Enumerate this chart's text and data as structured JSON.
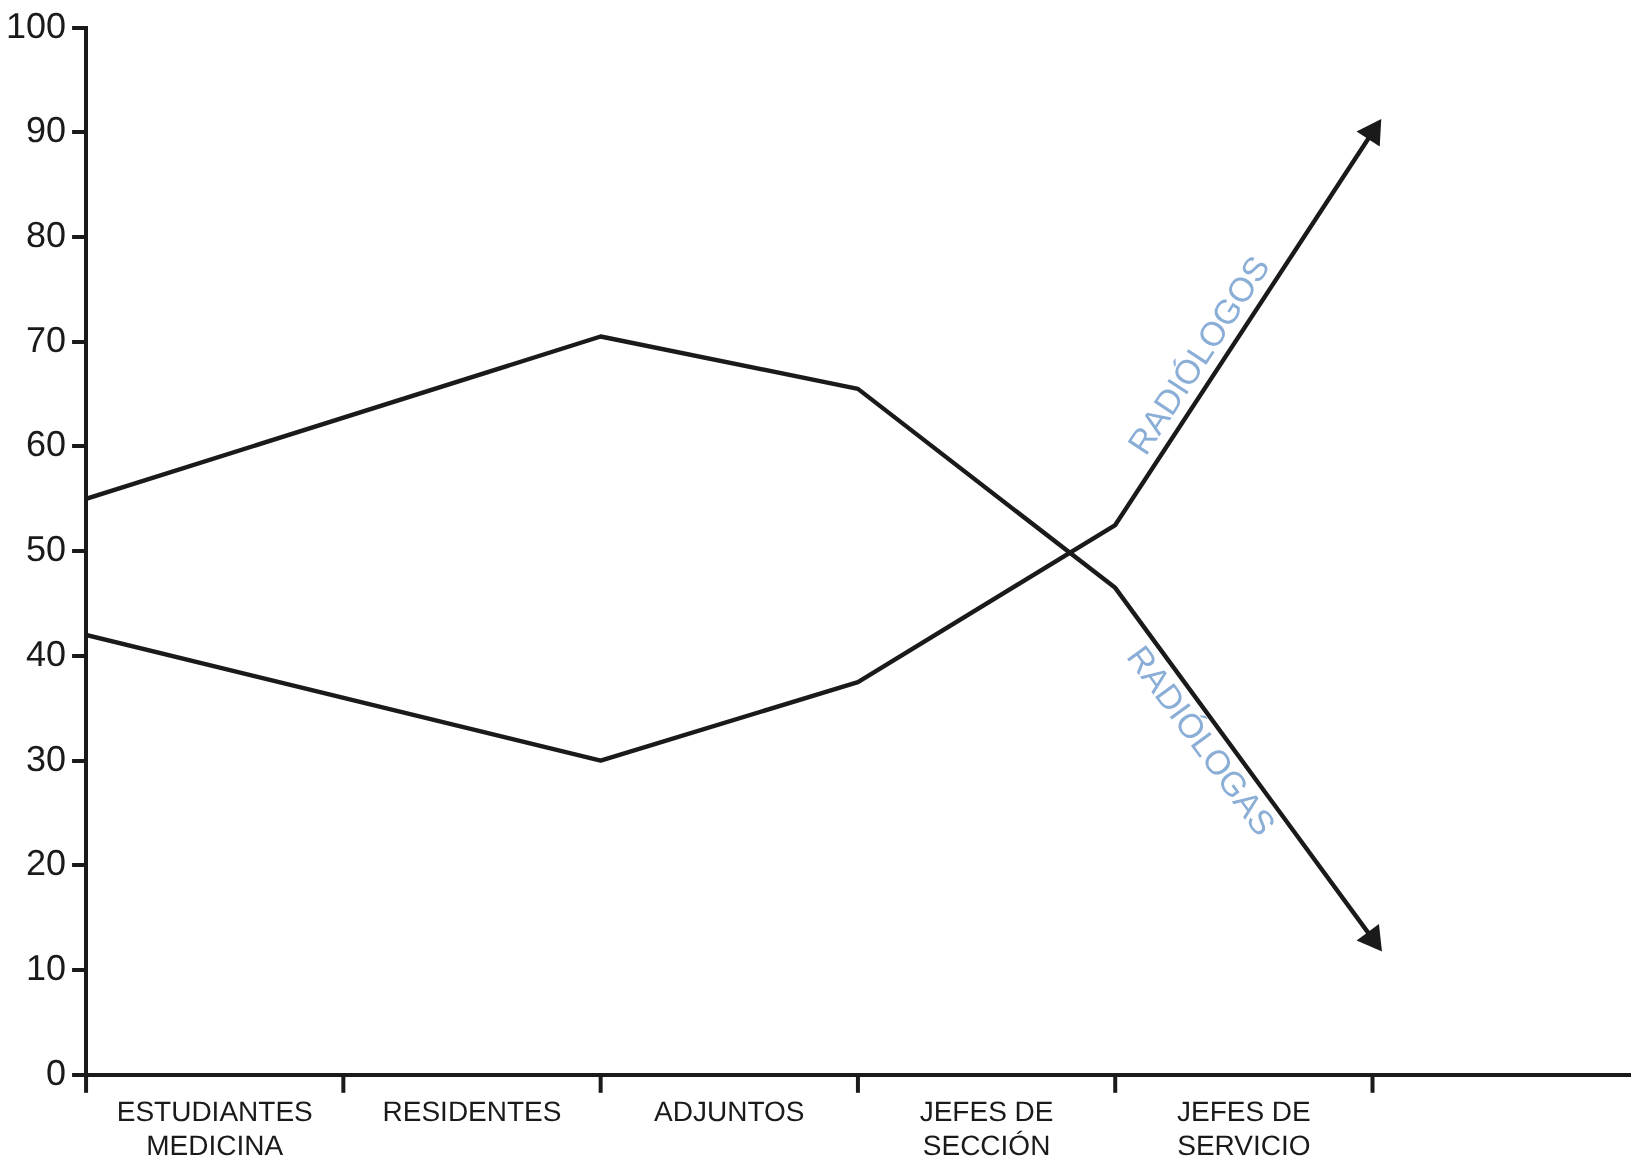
{
  "chart_data": {
    "type": "line",
    "categories": [
      null,
      "ESTUDIANTES\nMEDICINA",
      null,
      "RESIDENTES",
      null,
      "ADJUNTOS",
      null,
      "JEFES DE\nSECCIÓN",
      null,
      "JEFES DE\nSERVICIO",
      null,
      null
    ],
    "ylim": [
      0,
      100
    ],
    "yticks": [
      0,
      10,
      20,
      30,
      40,
      50,
      60,
      70,
      80,
      90,
      100
    ],
    "series": [
      {
        "name": "RADIÓLOGAS",
        "color": "#1a1a1a",
        "values": [
          55,
          null,
          null,
          null,
          70.5,
          null,
          65.5,
          null,
          46.5,
          null,
          13,
          null
        ]
      },
      {
        "name": "RADIÓLOGOS",
        "color": "#1a1a1a",
        "values": [
          42,
          null,
          null,
          null,
          30,
          null,
          37.5,
          null,
          52.5,
          null,
          90,
          null
        ]
      }
    ],
    "grid": false,
    "legend": false,
    "marker": "none",
    "line_style": "solid"
  }
}
